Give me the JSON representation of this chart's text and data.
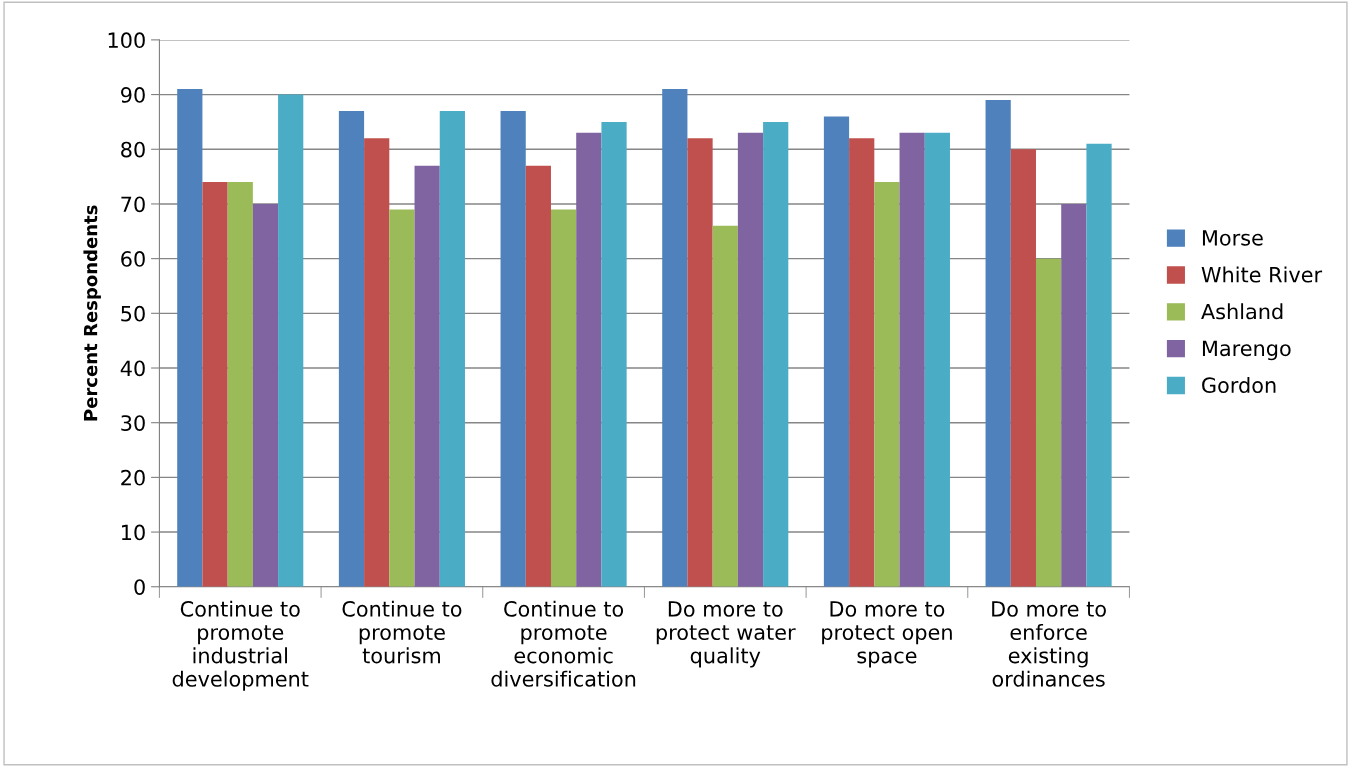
{
  "chart_data": {
    "type": "bar",
    "ylabel": "Percent Respondents",
    "categories": [
      "Continue to\npromote\nindustrial\ndevelopment",
      "Continue to\npromote\ntourism",
      "Continue to\npromote\neconomic\ndiversification",
      "Do more to\nprotect water\nquality",
      "Do more to\nprotect open\nspace",
      "Do more to\nenforce\nexisting\nordinances"
    ],
    "series": [
      {
        "name": "Morse",
        "color": "#4f81bd",
        "values": [
          91,
          87,
          87,
          91,
          86,
          89
        ]
      },
      {
        "name": "White River",
        "color": "#c0504d",
        "values": [
          74,
          82,
          77,
          82,
          82,
          80
        ]
      },
      {
        "name": "Ashland",
        "color": "#9bbb59",
        "values": [
          74,
          69,
          69,
          66,
          74,
          60
        ]
      },
      {
        "name": "Marengo",
        "color": "#8064a2",
        "values": [
          70,
          77,
          83,
          83,
          83,
          70
        ]
      },
      {
        "name": "Gordon",
        "color": "#4bacc6",
        "values": [
          90,
          87,
          85,
          85,
          83,
          81
        ]
      }
    ],
    "ylim": [
      0,
      100
    ],
    "yticks": [
      0,
      10,
      20,
      30,
      40,
      50,
      60,
      70,
      80,
      90,
      100
    ],
    "grid": "y",
    "legend": "right"
  }
}
